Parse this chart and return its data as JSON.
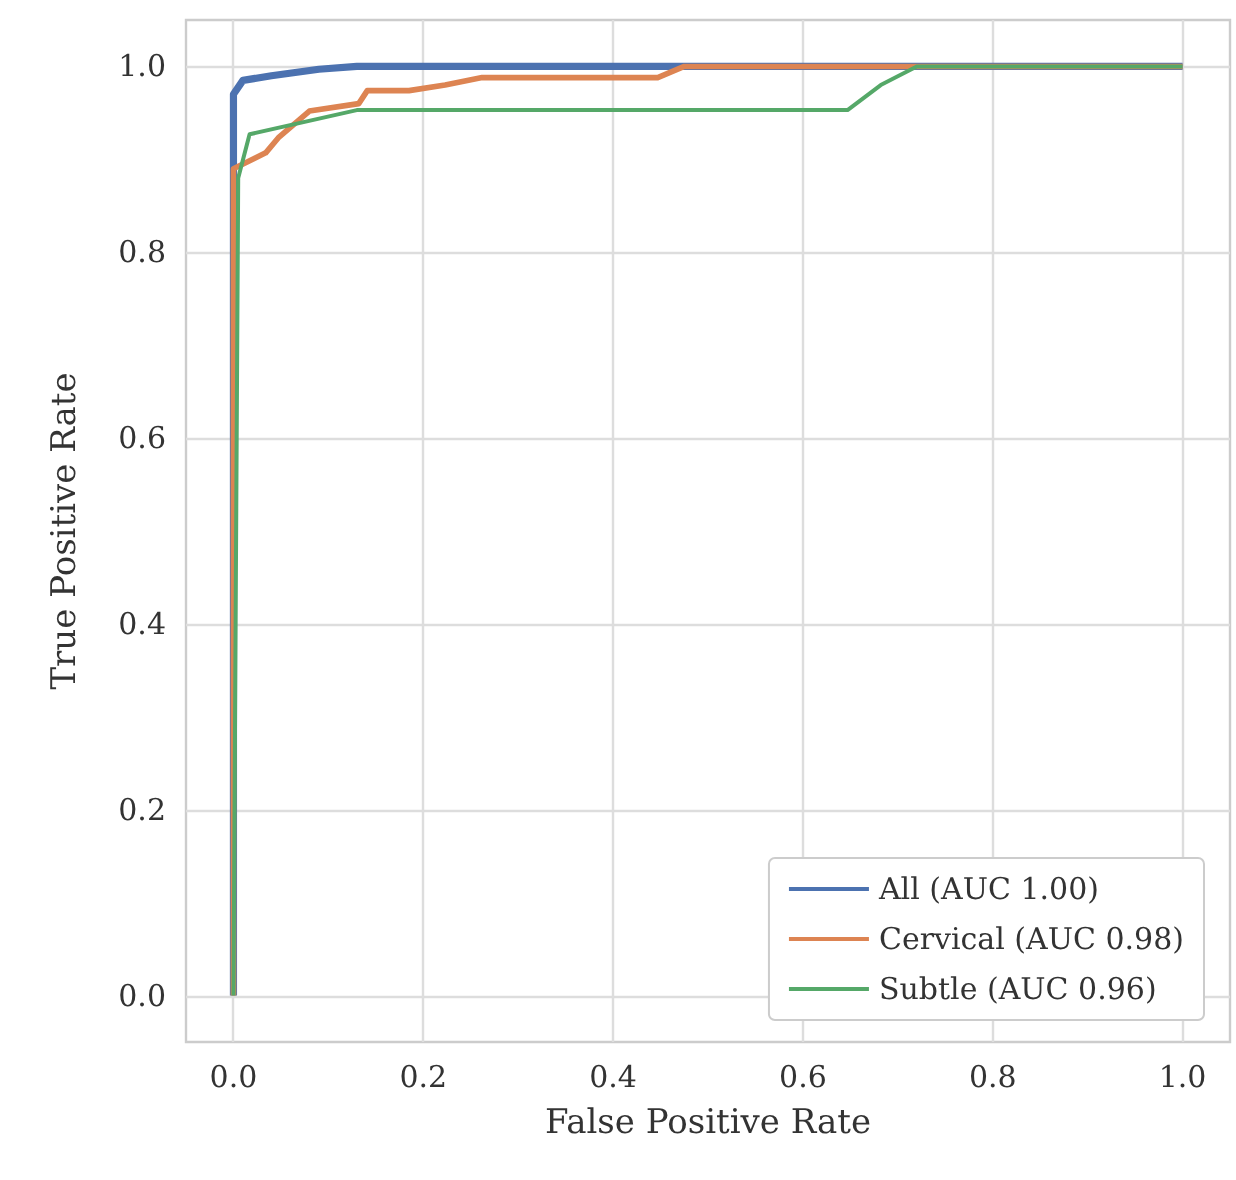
{
  "chart_data": {
    "type": "line",
    "xlabel": "False Positive Rate",
    "ylabel": "True Positive Rate",
    "xlim": [
      -0.05,
      1.05
    ],
    "ylim": [
      -0.05,
      1.05
    ],
    "xticks": [
      {
        "value": 0,
        "label": "0.0"
      },
      {
        "value": 0.2,
        "label": "0.2"
      },
      {
        "value": 0.4,
        "label": "0.4"
      },
      {
        "value": 0.6,
        "label": "0.6"
      },
      {
        "value": 0.8,
        "label": "0.8"
      },
      {
        "value": 1,
        "label": "1.0"
      }
    ],
    "yticks": [
      {
        "value": 0,
        "label": "0.0"
      },
      {
        "value": 0.2,
        "label": "0.2"
      },
      {
        "value": 0.4,
        "label": "0.4"
      },
      {
        "value": 0.6,
        "label": "0.6"
      },
      {
        "value": 0.8,
        "label": "0.8"
      },
      {
        "value": 1,
        "label": "1.0"
      }
    ],
    "grid": true,
    "legend": "bottom right",
    "series": [
      {
        "name": "All (AUC 1.00)",
        "color": "#4c72b0",
        "x": [
          0,
          0,
          0.01,
          0.04,
          0.09,
          0.13,
          1
        ],
        "values": [
          0,
          0.97,
          0.985,
          0.99,
          0.997,
          1,
          1
        ]
      },
      {
        "name": "Cervical (AUC 0.98)",
        "color": "#dd8452",
        "x": [
          0,
          0,
          0.034,
          0.048,
          0.08,
          0.132,
          0.141,
          0.185,
          0.223,
          0.262,
          0.447,
          0.475,
          1
        ],
        "values": [
          0,
          0.89,
          0.907,
          0.924,
          0.952,
          0.96,
          0.974,
          0.974,
          0.98,
          0.988,
          0.988,
          1,
          1
        ]
      },
      {
        "name": "Subtle (AUC 0.96)",
        "color": "#55a868",
        "x": [
          0,
          0.005,
          0.017,
          0.13,
          0.647,
          0.682,
          0.72,
          1
        ],
        "values": [
          0,
          0.88,
          0.927,
          0.953,
          0.953,
          0.98,
          1,
          1
        ]
      }
    ]
  }
}
